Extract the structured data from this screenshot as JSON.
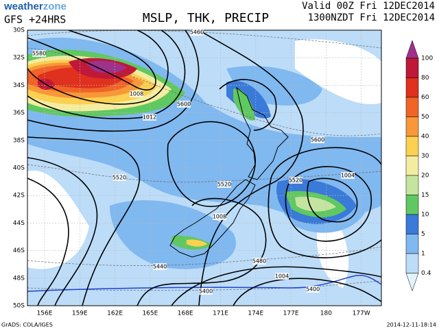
{
  "header": {
    "logo_left": "weather",
    "logo_right": "zone",
    "model": "GFS +24HRS",
    "title": "MSLP, THK, PRECIP",
    "valid": "Valid 00Z Fri 12DEC2014",
    "local": "1300NZDT Fri 12DEC2014"
  },
  "map": {
    "lat_labels": [
      "30S",
      "32S",
      "34S",
      "36S",
      "38S",
      "40S",
      "42S",
      "44S",
      "46S",
      "48S",
      "50S"
    ],
    "lon_labels": [
      "156E",
      "159E",
      "162E",
      "165E",
      "168E",
      "171E",
      "174E",
      "177E",
      "180",
      "177W"
    ],
    "contour_labels": [
      "5460",
      "5580",
      "1008",
      "1012",
      "5600",
      "5600",
      "5520",
      "5520",
      "5520",
      "1004",
      "1008",
      "5440",
      "5480",
      "1004",
      "5400",
      "5400"
    ]
  },
  "colorbar": {
    "levels": [
      100,
      80,
      60,
      50,
      40,
      30,
      20,
      15,
      10,
      5,
      1,
      0.4
    ],
    "colors": [
      "#a0308c",
      "#c01838",
      "#e0301e",
      "#f06428",
      "#f89838",
      "#fcd050",
      "#f4eca0",
      "#c4e4a0",
      "#60c860",
      "#3a7ad8",
      "#80b8f0",
      "#bcdcf8",
      "#e4f2fc"
    ]
  },
  "footer": {
    "credit": "GrADS: COLA/IGES",
    "timestamp": "2014-12-11-18:14"
  }
}
